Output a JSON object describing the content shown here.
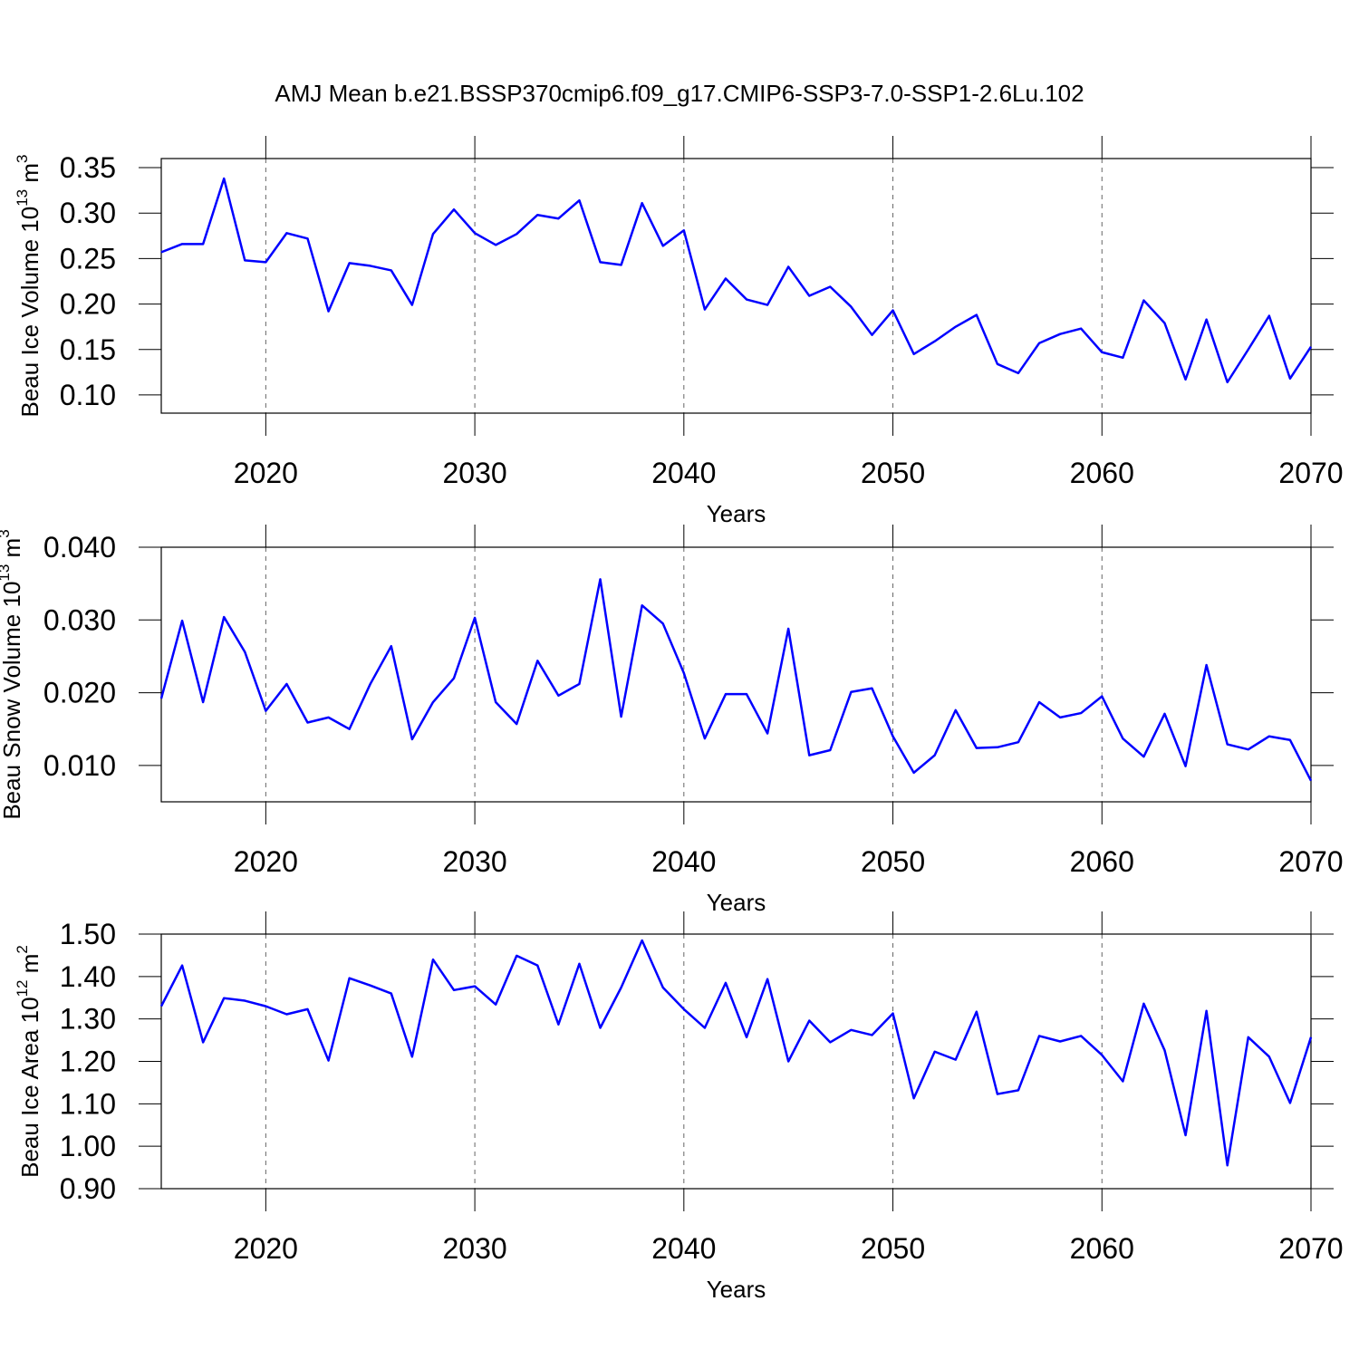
{
  "chart_data": [
    {
      "type": "line",
      "title": "AMJ Mean b.e21.BSSP370cmip6.f09_g17.CMIP6-SSP3-7.0-SSP1-2.6Lu.102",
      "ylabel": [
        "Beau Ice Volume 10",
        "13",
        " m",
        "3"
      ],
      "xlabel": "Years",
      "x": [
        2015,
        2016,
        2017,
        2018,
        2019,
        2020,
        2021,
        2022,
        2023,
        2024,
        2025,
        2026,
        2027,
        2028,
        2029,
        2030,
        2031,
        2032,
        2033,
        2034,
        2035,
        2036,
        2037,
        2038,
        2039,
        2040,
        2041,
        2042,
        2043,
        2044,
        2045,
        2046,
        2047,
        2048,
        2049,
        2050,
        2051,
        2052,
        2053,
        2054,
        2055,
        2056,
        2057,
        2058,
        2059,
        2060,
        2061,
        2062,
        2063,
        2064,
        2065,
        2066,
        2067,
        2068,
        2069,
        2070
      ],
      "series": [
        {
          "color": "#0000ff",
          "values": [
            0.257,
            0.266,
            0.266,
            0.338,
            0.248,
            0.246,
            0.278,
            0.272,
            0.192,
            0.245,
            0.242,
            0.237,
            0.199,
            0.277,
            0.304,
            0.278,
            0.265,
            0.277,
            0.298,
            0.294,
            0.314,
            0.246,
            0.243,
            0.311,
            0.264,
            0.281,
            0.194,
            0.228,
            0.205,
            0.199,
            0.241,
            0.209,
            0.219,
            0.197,
            0.166,
            0.193,
            0.145,
            0.159,
            0.175,
            0.188,
            0.134,
            0.124,
            0.157,
            0.167,
            0.173,
            0.147,
            0.141,
            0.204,
            0.179,
            0.117,
            0.183,
            0.114,
            0.15,
            0.187,
            0.118,
            0.153
          ]
        }
      ],
      "xlim": [
        2015,
        2070
      ],
      "xticks": [
        2020,
        2030,
        2040,
        2050,
        2060,
        2070
      ],
      "ylim": [
        0.08,
        0.36
      ],
      "yticks": [
        {
          "value": 0.1,
          "label": "0.10"
        },
        0.15,
        {
          "value": 0.2,
          "label": "0.20"
        },
        0.25,
        {
          "value": 0.3,
          "label": "0.30"
        },
        0.35
      ],
      "xgrid": true
    },
    {
      "type": "line",
      "ylabel": [
        "Beau Snow Volume 10",
        "13",
        " m",
        "3"
      ],
      "xlabel": "Years",
      "x": [
        2015,
        2016,
        2017,
        2018,
        2019,
        2020,
        2021,
        2022,
        2023,
        2024,
        2025,
        2026,
        2027,
        2028,
        2029,
        2030,
        2031,
        2032,
        2033,
        2034,
        2035,
        2036,
        2037,
        2038,
        2039,
        2040,
        2041,
        2042,
        2043,
        2044,
        2045,
        2046,
        2047,
        2048,
        2049,
        2050,
        2051,
        2052,
        2053,
        2054,
        2055,
        2056,
        2057,
        2058,
        2059,
        2060,
        2061,
        2062,
        2063,
        2064,
        2065,
        2066,
        2067,
        2068,
        2069,
        2070
      ],
      "series": [
        {
          "color": "#0000ff",
          "values": [
            0.0192,
            0.0299,
            0.0187,
            0.0304,
            0.0256,
            0.0175,
            0.0212,
            0.0159,
            0.0166,
            0.015,
            0.0212,
            0.0264,
            0.0136,
            0.0187,
            0.022,
            0.0303,
            0.0187,
            0.0157,
            0.0244,
            0.0196,
            0.0212,
            0.0356,
            0.0167,
            0.032,
            0.0295,
            0.0227,
            0.0137,
            0.0198,
            0.0198,
            0.0144,
            0.0288,
            0.0114,
            0.0121,
            0.0201,
            0.0206,
            0.014,
            0.009,
            0.0114,
            0.0176,
            0.0124,
            0.0125,
            0.0132,
            0.0187,
            0.0166,
            0.0172,
            0.0195,
            0.0137,
            0.0112,
            0.0171,
            0.0099,
            0.0238,
            0.0129,
            0.0122,
            0.014,
            0.0135,
            0.0079
          ]
        }
      ],
      "xlim": [
        2015,
        2070
      ],
      "xticks": [
        2020,
        2030,
        2040,
        2050,
        2060,
        2070
      ],
      "ylim": [
        0.005,
        0.04
      ],
      "yticks": [
        {
          "value": 0.01,
          "label": "0.010"
        },
        {
          "value": 0.02,
          "label": "0.020"
        },
        {
          "value": 0.03,
          "label": "0.030"
        },
        {
          "value": 0.04,
          "label": "0.040"
        }
      ],
      "xgrid": true
    },
    {
      "type": "line",
      "ylabel": [
        "Beau Ice Area 10",
        "12",
        " m",
        "2"
      ],
      "xlabel": "Years",
      "x": [
        2015,
        2016,
        2017,
        2018,
        2019,
        2020,
        2021,
        2022,
        2023,
        2024,
        2025,
        2026,
        2027,
        2028,
        2029,
        2030,
        2031,
        2032,
        2033,
        2034,
        2035,
        2036,
        2037,
        2038,
        2039,
        2040,
        2041,
        2042,
        2043,
        2044,
        2045,
        2046,
        2047,
        2048,
        2049,
        2050,
        2051,
        2052,
        2053,
        2054,
        2055,
        2056,
        2057,
        2058,
        2059,
        2060,
        2061,
        2062,
        2063,
        2064,
        2065,
        2066,
        2067,
        2068,
        2069,
        2070
      ],
      "series": [
        {
          "color": "#0000ff",
          "values": [
            1.33,
            1.426,
            1.245,
            1.349,
            1.343,
            1.33,
            1.311,
            1.323,
            1.202,
            1.396,
            1.379,
            1.36,
            1.211,
            1.44,
            1.368,
            1.377,
            1.334,
            1.449,
            1.426,
            1.287,
            1.43,
            1.279,
            1.374,
            1.485,
            1.374,
            1.323,
            1.279,
            1.385,
            1.257,
            1.394,
            1.2,
            1.296,
            1.245,
            1.274,
            1.262,
            1.313,
            1.113,
            1.223,
            1.204,
            1.317,
            1.123,
            1.132,
            1.26,
            1.247,
            1.26,
            1.215,
            1.153,
            1.336,
            1.226,
            1.026,
            1.319,
            0.955,
            1.257,
            1.211,
            1.102,
            1.257
          ]
        }
      ],
      "xlim": [
        2015,
        2070
      ],
      "xticks": [
        2020,
        2030,
        2040,
        2050,
        2060,
        2070
      ],
      "ylim": [
        0.9,
        1.5
      ],
      "yticks": [
        {
          "value": 0.9,
          "label": "0.90"
        },
        {
          "value": 1.0,
          "label": "1.00"
        },
        {
          "value": 1.1,
          "label": "1.10"
        },
        {
          "value": 1.2,
          "label": "1.20"
        },
        {
          "value": 1.3,
          "label": "1.30"
        },
        {
          "value": 1.4,
          "label": "1.40"
        },
        {
          "value": 1.5,
          "label": "1.50"
        }
      ],
      "xgrid": true
    }
  ]
}
